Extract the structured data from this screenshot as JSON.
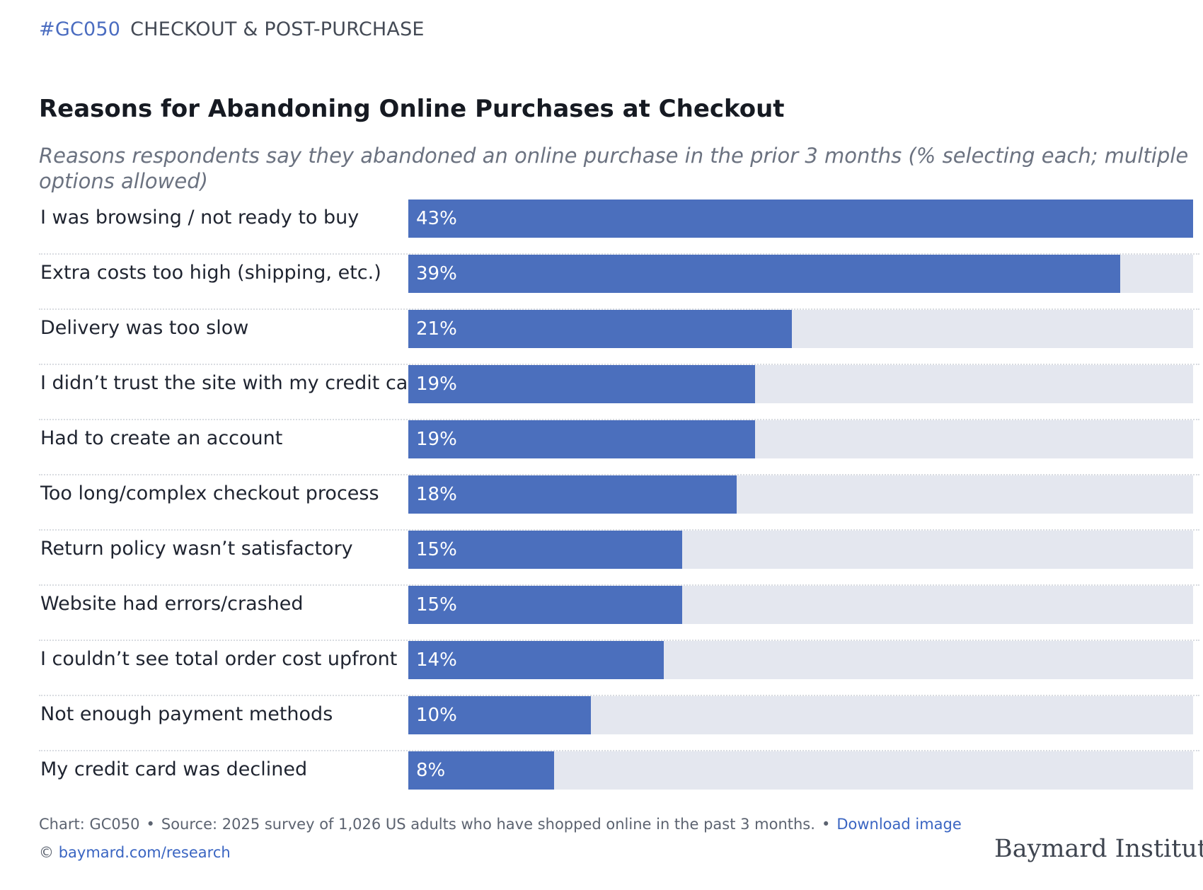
{
  "header": {
    "code": "#GC050",
    "category": "CHECKOUT & POST-PURCHASE"
  },
  "chart_data": {
    "type": "bar",
    "orientation": "horizontal",
    "title": "Reasons for Abandoning Online Purchases at Checkout",
    "subtitle": "Reasons respondents say they abandoned an online purchase in the prior 3 months (% selecting each; multiple options allowed)",
    "categories": [
      "I was browsing / not ready to buy",
      "Extra costs too high (shipping, etc.)",
      "Delivery was too slow",
      "I didn’t trust the site with my credit card",
      "Had to create an account",
      "Too long/complex checkout process",
      "Return policy wasn’t satisfactory",
      "Website had errors/crashed",
      "I couldn’t see total order cost upfront",
      "Not enough payment methods",
      "My credit card was declined"
    ],
    "values": [
      43,
      39,
      21,
      19,
      19,
      18,
      15,
      15,
      14,
      10,
      8
    ],
    "value_labels": [
      "43%",
      "39%",
      "21%",
      "19%",
      "19%",
      "18%",
      "15%",
      "15%",
      "14%",
      "10%",
      "8%"
    ],
    "xlim": [
      0,
      43
    ],
    "bar_color": "#4b6fbd",
    "track_color": "#e4e7ef"
  },
  "footer": {
    "chart_id": "Chart: GC050",
    "source": "Source: 2025 survey of 1,026 US adults who have shopped online in the past 3 months.",
    "download_link": "Download image",
    "copyright_symbol": "©",
    "research_link": "baymard.com/research",
    "bullet": "•",
    "brand": "Baymard Institute"
  }
}
